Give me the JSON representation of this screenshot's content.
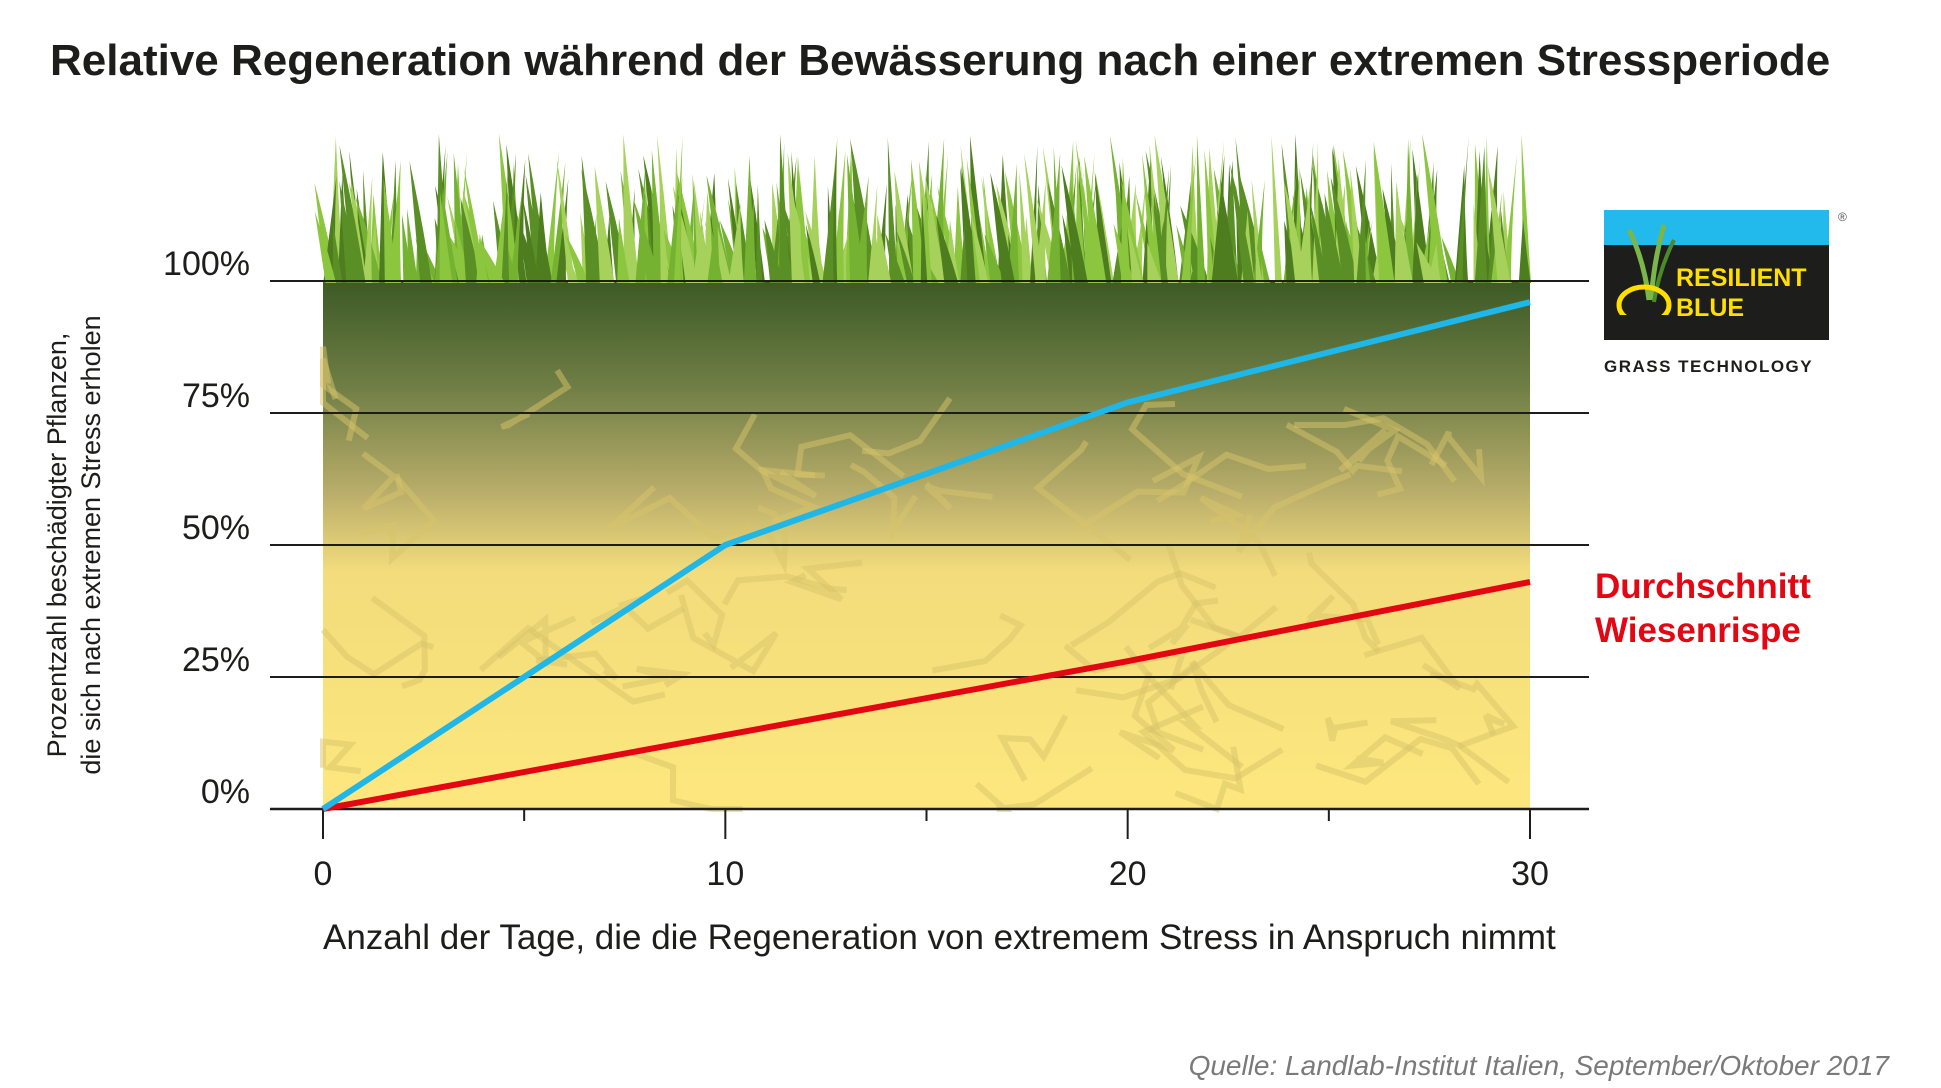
{
  "title": "Relative Regeneration während der Bewässerung nach einer extremen Stressperiode",
  "source": "Quelle: Landlab-Institut Italien, September/Oktober 2017",
  "logo": {
    "line1": "RESILIENT",
    "line2": "BLUE",
    "tagline": "GRASS TECHNOLOGY",
    "registered": "®"
  },
  "colors": {
    "blue_series": "#1fb6e8",
    "red_series": "#e30613",
    "logo_blue": "#22b9ec",
    "logo_yellow": "#ffde00"
  },
  "chart_data": {
    "type": "line",
    "title": "Relative Regeneration während der Bewässerung nach einer extremen Stressperiode",
    "xlabel": "Anzahl der Tage, die die Regeneration von extremem Stress in Anspruch nimmt",
    "ylabel": [
      "Prozentzahl beschädigter Pflanzen,",
      "die sich nach extremen Stress erholen"
    ],
    "x": [
      0,
      10,
      20,
      30
    ],
    "xlim": [
      0,
      30
    ],
    "ylim": [
      0,
      100
    ],
    "xticks": [
      "0",
      "10",
      "20",
      "30"
    ],
    "yticks": [
      "0%",
      "25%",
      "50%",
      "75%",
      "100%"
    ],
    "grid": "horizontal",
    "series": [
      {
        "key": "resilient_blue",
        "color": "#1fb6e8",
        "values": [
          0,
          50,
          77,
          96
        ]
      },
      {
        "name": "Durchschnitt Wiesenrispe",
        "name_lines": [
          "Durchschnitt",
          "Wiesenrispe"
        ],
        "color": "#e30613",
        "values": [
          0,
          14,
          28,
          43
        ]
      }
    ]
  }
}
